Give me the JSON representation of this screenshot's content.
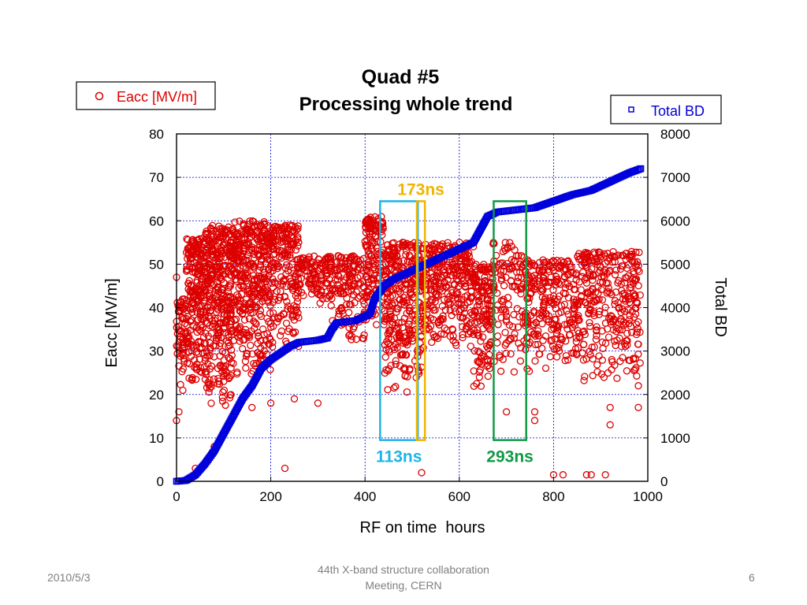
{
  "footer": {
    "date": "2010/5/3",
    "center_line1": "44th X-band structure collaboration",
    "center_line2": "Meeting, CERN",
    "page": "6"
  },
  "colors": {
    "eacc": "#dd0000",
    "total_bd": "#0000dd",
    "box_113ns": "#1eb4e6",
    "box_173ns": "#f0b400",
    "box_293ns": "#119944",
    "grid": "#0000dd"
  },
  "chart_data": {
    "type": "scatter",
    "title": "Quad #5",
    "subtitle": "Processing whole trend",
    "xlabel": "RF on time  hours",
    "ylabel": "Eacc [MV/m]",
    "y2label": "Total BD",
    "xlim": [
      0,
      1000
    ],
    "ylim": [
      0,
      80
    ],
    "y2lim": [
      0,
      8000
    ],
    "x_ticks": [
      "0",
      "200",
      "400",
      "600",
      "800",
      "1000"
    ],
    "y_ticks": [
      "0",
      "10",
      "20",
      "30",
      "40",
      "50",
      "60",
      "70",
      "80"
    ],
    "y2_ticks": [
      "0",
      "1000",
      "2000",
      "3000",
      "4000",
      "5000",
      "6000",
      "7000",
      "8000"
    ],
    "grid": true,
    "legend_left": {
      "marker": "o",
      "label": "Eacc [MV/m]",
      "placement": "top-left"
    },
    "legend_right": {
      "marker": "□",
      "label": "Total BD",
      "placement": "top-right"
    },
    "series": [
      {
        "name": "Total BD",
        "axis": "right",
        "marker": "square",
        "points": [
          [
            0,
            0
          ],
          [
            20,
            20
          ],
          [
            40,
            150
          ],
          [
            60,
            400
          ],
          [
            80,
            700
          ],
          [
            100,
            1100
          ],
          [
            120,
            1500
          ],
          [
            140,
            1900
          ],
          [
            160,
            2200
          ],
          [
            180,
            2600
          ],
          [
            200,
            2800
          ],
          [
            220,
            2950
          ],
          [
            240,
            3100
          ],
          [
            260,
            3200
          ],
          [
            300,
            3250
          ],
          [
            320,
            3300
          ],
          [
            330,
            3500
          ],
          [
            340,
            3650
          ],
          [
            380,
            3700
          ],
          [
            400,
            3800
          ],
          [
            410,
            3850
          ],
          [
            420,
            4200
          ],
          [
            440,
            4500
          ],
          [
            460,
            4650
          ],
          [
            480,
            4750
          ],
          [
            500,
            4850
          ],
          [
            520,
            4950
          ],
          [
            560,
            5150
          ],
          [
            600,
            5350
          ],
          [
            630,
            5500
          ],
          [
            640,
            5700
          ],
          [
            660,
            6100
          ],
          [
            680,
            6200
          ],
          [
            720,
            6250
          ],
          [
            760,
            6300
          ],
          [
            800,
            6450
          ],
          [
            840,
            6600
          ],
          [
            880,
            6700
          ],
          [
            920,
            6900
          ],
          [
            960,
            7100
          ],
          [
            985,
            7200
          ]
        ]
      },
      {
        "name": "Eacc [MV/m]",
        "axis": "left",
        "marker": "circle",
        "clusters": [
          {
            "x": [
              0,
              20
            ],
            "y": [
              20,
              42
            ],
            "n": 60
          },
          {
            "x": [
              20,
              60
            ],
            "y": [
              22,
              56
            ],
            "n": 220
          },
          {
            "x": [
              60,
              120
            ],
            "y": [
              17,
              59
            ],
            "n": 380
          },
          {
            "x": [
              120,
              200
            ],
            "y": [
              24,
              60
            ],
            "n": 380
          },
          {
            "x": [
              200,
              260
            ],
            "y": [
              30,
              59
            ],
            "n": 200
          },
          {
            "x": [
              260,
              330
            ],
            "y": [
              40,
              52
            ],
            "n": 120
          },
          {
            "x": [
              330,
              400
            ],
            "y": [
              32,
              52
            ],
            "n": 140
          },
          {
            "x": [
              400,
              440
            ],
            "y": [
              35,
              61
            ],
            "n": 150
          },
          {
            "x": [
              440,
              520
            ],
            "y": [
              20,
              55
            ],
            "n": 320
          },
          {
            "x": [
              520,
              630
            ],
            "y": [
              30,
              55
            ],
            "n": 320
          },
          {
            "x": [
              630,
              670
            ],
            "y": [
              21,
              50
            ],
            "n": 150
          },
          {
            "x": [
              670,
              740
            ],
            "y": [
              24,
              55
            ],
            "n": 120
          },
          {
            "x": [
              740,
              850
            ],
            "y": [
              25,
              51
            ],
            "n": 260
          },
          {
            "x": [
              850,
              985
            ],
            "y": [
              22,
              53
            ],
            "n": 320
          }
        ],
        "points": [
          [
            0,
            47
          ],
          [
            0,
            14
          ],
          [
            5,
            16
          ],
          [
            40,
            3
          ],
          [
            80,
            8
          ],
          [
            250,
            19
          ],
          [
            300,
            18
          ],
          [
            230,
            3
          ],
          [
            200,
            18
          ],
          [
            480,
            55
          ],
          [
            520,
            2
          ],
          [
            700,
            16
          ],
          [
            800,
            1.5
          ],
          [
            820,
            1.5
          ],
          [
            870,
            1.5
          ],
          [
            880,
            1.5
          ],
          [
            910,
            1.5
          ],
          [
            920,
            13
          ],
          [
            920,
            17
          ],
          [
            980,
            17
          ],
          [
            980,
            22
          ],
          [
            760,
            14
          ],
          [
            760,
            16
          ],
          [
            100,
            23
          ],
          [
            160,
            17
          ],
          [
            350,
            40
          ]
        ]
      }
    ],
    "annotations": [
      {
        "label": "113ns",
        "x_range": [
          432,
          512
        ],
        "y_range": [
          9.5,
          64.5
        ],
        "color": "box_113ns",
        "label_pos": "bottom"
      },
      {
        "label": "173ns",
        "x_range": [
          510,
          527
        ],
        "y_range": [
          9.5,
          64.5
        ],
        "color": "box_173ns",
        "label_pos": "top"
      },
      {
        "label": "293ns",
        "x_range": [
          673,
          742
        ],
        "y_range": [
          9.5,
          64.5
        ],
        "color": "box_293ns",
        "label_pos": "bottom"
      }
    ]
  }
}
